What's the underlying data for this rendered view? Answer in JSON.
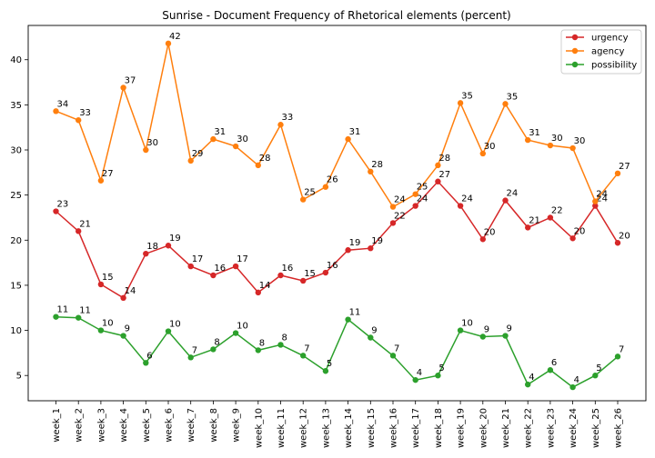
{
  "chart_data": {
    "type": "line",
    "title": "Sunrise - Document Frequency of Rhetorical elements (percent)",
    "xlabel": "",
    "ylabel": "",
    "categories": [
      "week_1",
      "week_2",
      "week_3",
      "week_4",
      "week_5",
      "week_6",
      "week_7",
      "week_8",
      "week_9",
      "week_10",
      "week_11",
      "week_12",
      "week_13",
      "week_14",
      "week_15",
      "week_16",
      "week_17",
      "week_18",
      "week_19",
      "week_20",
      "week_21",
      "week_22",
      "week_23",
      "week_24",
      "week_25",
      "week_26"
    ],
    "ylim": [
      2.2,
      43.8
    ],
    "yticks": [
      5,
      10,
      15,
      20,
      25,
      30,
      35,
      40
    ],
    "grid": false,
    "legend_position": "top-right",
    "series": [
      {
        "name": "urgency",
        "color": "#d62728",
        "values": [
          23.2,
          21.0,
          15.1,
          13.6,
          18.5,
          19.4,
          17.1,
          16.1,
          17.1,
          14.2,
          16.1,
          15.5,
          16.4,
          18.9,
          19.1,
          21.9,
          23.8,
          26.5,
          23.8,
          20.1,
          24.4,
          21.4,
          22.5,
          20.2,
          23.8,
          19.7
        ],
        "labels": [
          "23",
          "21",
          "15",
          "14",
          "18",
          "19",
          "17",
          "16",
          "17",
          "14",
          "16",
          "15",
          "16",
          "19",
          "19",
          "22",
          "24",
          "27",
          "24",
          "20",
          "24",
          "21",
          "22",
          "20",
          "24",
          "20"
        ]
      },
      {
        "name": "agency",
        "color": "#ff7f0e",
        "values": [
          34.3,
          33.3,
          26.6,
          36.9,
          30.0,
          41.8,
          28.8,
          31.2,
          30.4,
          28.3,
          32.8,
          24.5,
          25.9,
          31.2,
          27.6,
          23.7,
          25.1,
          28.3,
          35.2,
          29.6,
          35.1,
          31.1,
          30.5,
          30.2,
          24.3,
          27.4
        ],
        "labels": [
          "34",
          "33",
          "27",
          "37",
          "30",
          "42",
          "29",
          "31",
          "30",
          "28",
          "33",
          "25",
          "26",
          "31",
          "28",
          "24",
          "25",
          "28",
          "35",
          "30",
          "35",
          "31",
          "30",
          "30",
          "24",
          "27"
        ]
      },
      {
        "name": "possibility",
        "color": "#2ca02c",
        "values": [
          11.5,
          11.4,
          10.0,
          9.4,
          6.4,
          9.9,
          7.0,
          7.9,
          9.7,
          7.8,
          8.4,
          7.2,
          5.5,
          11.2,
          9.2,
          7.2,
          4.5,
          5.0,
          10.0,
          9.3,
          9.4,
          4.0,
          5.6,
          3.7,
          5.0,
          7.1
        ],
        "labels": [
          "11",
          "11",
          "10",
          "9",
          "6",
          "10",
          "7",
          "8",
          "10",
          "8",
          "8",
          "7",
          "5",
          "11",
          "9",
          "7",
          "4",
          "5",
          "10",
          "9",
          "9",
          "4",
          "6",
          "4",
          "5",
          "7"
        ]
      }
    ]
  }
}
